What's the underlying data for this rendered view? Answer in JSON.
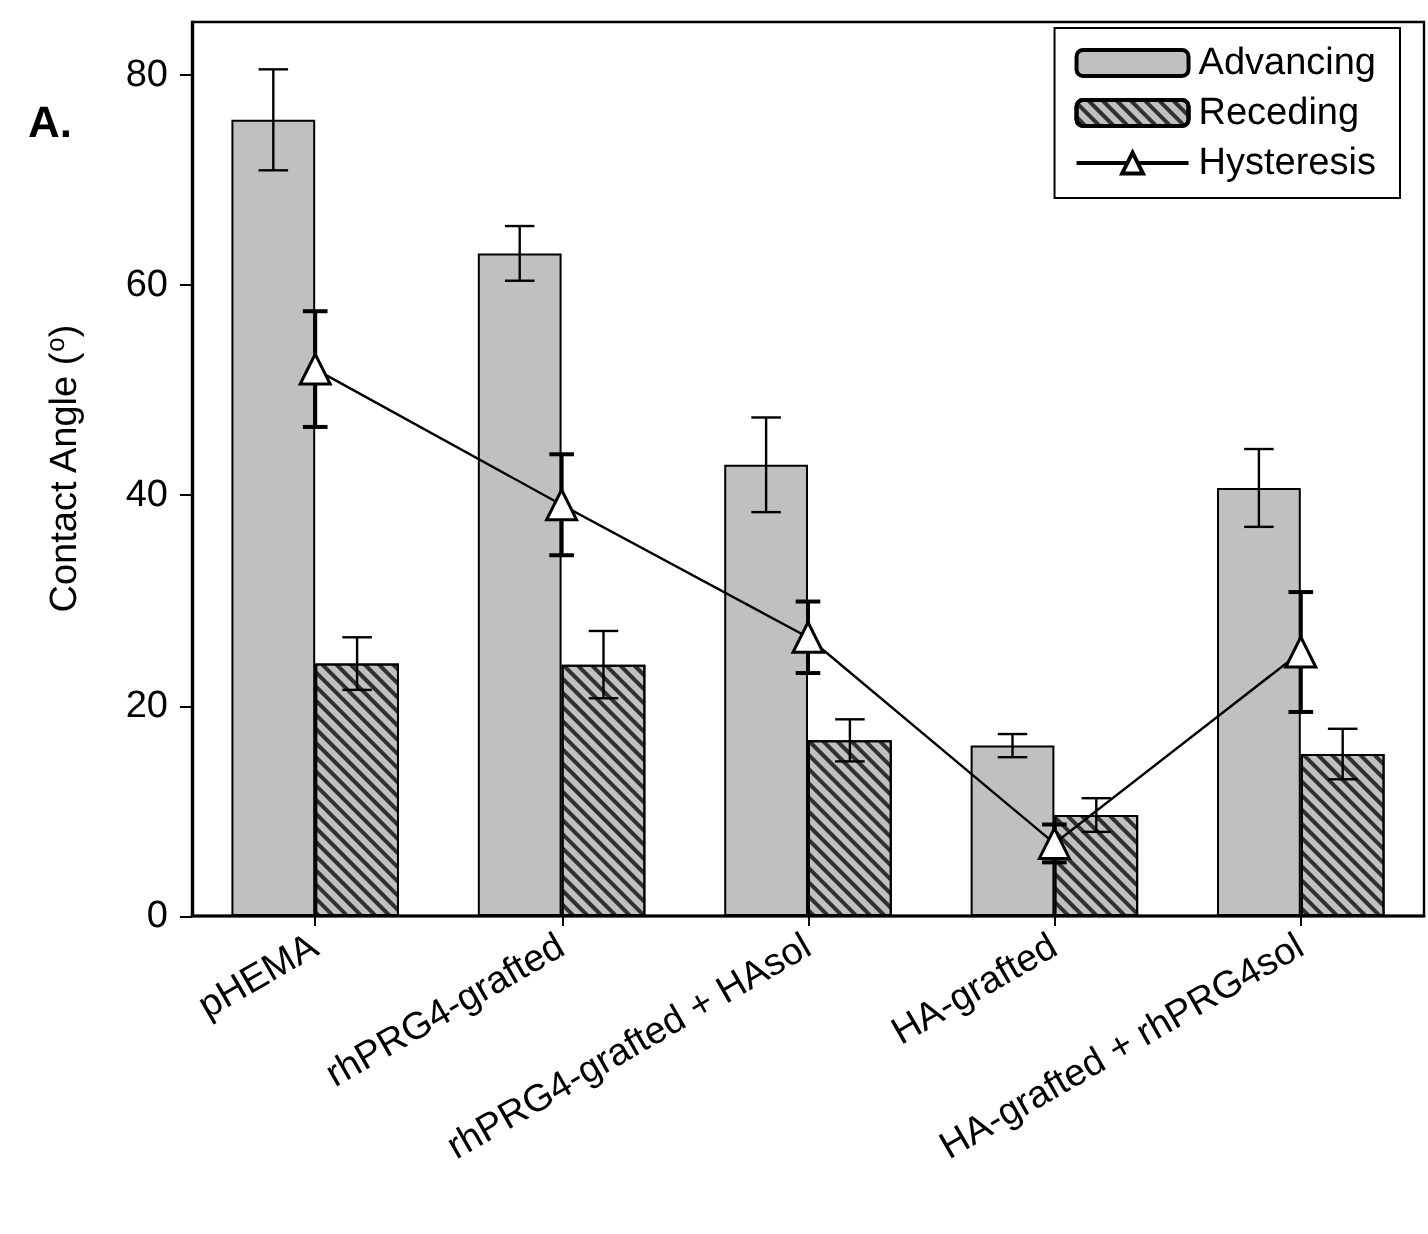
{
  "chart_data": {
    "type": "bar",
    "ylabel": "Contact Angle ($^{o}$)",
    "annotations": [
      "A."
    ],
    "categories": [
      "pHEMA",
      "rhPRG4-grafted",
      "rhPRG4-grafted + HAsol",
      "HA-grafted",
      "HA-grafted + rhPRG4sol"
    ],
    "series": [
      {
        "name": "Advancing",
        "color": "#c0c0c0",
        "values": [
          75.7,
          63.0,
          42.9,
          16.2,
          40.7
        ],
        "errors": [
          4.8,
          2.6,
          4.5,
          1.1,
          3.7
        ]
      },
      {
        "name": "Receding",
        "color": "#c0c0c0",
        "values": [
          24.0,
          23.9,
          16.7,
          9.6,
          15.4
        ],
        "errors": [
          2.5,
          3.2,
          2.0,
          1.6,
          2.4
        ]
      },
      {
        "name": "Hysteresis",
        "type": "line",
        "color": "#000000",
        "marker": "triangle",
        "values": [
          52.0,
          39.1,
          26.5,
          6.9,
          25.1
        ],
        "errors": [
          5.5,
          4.8,
          3.4,
          1.8,
          5.7
        ]
      }
    ],
    "ylim": [
      0,
      85
    ],
    "yticks": [
      0,
      20,
      40,
      60,
      80
    ],
    "grid": false,
    "legend": "top right"
  }
}
